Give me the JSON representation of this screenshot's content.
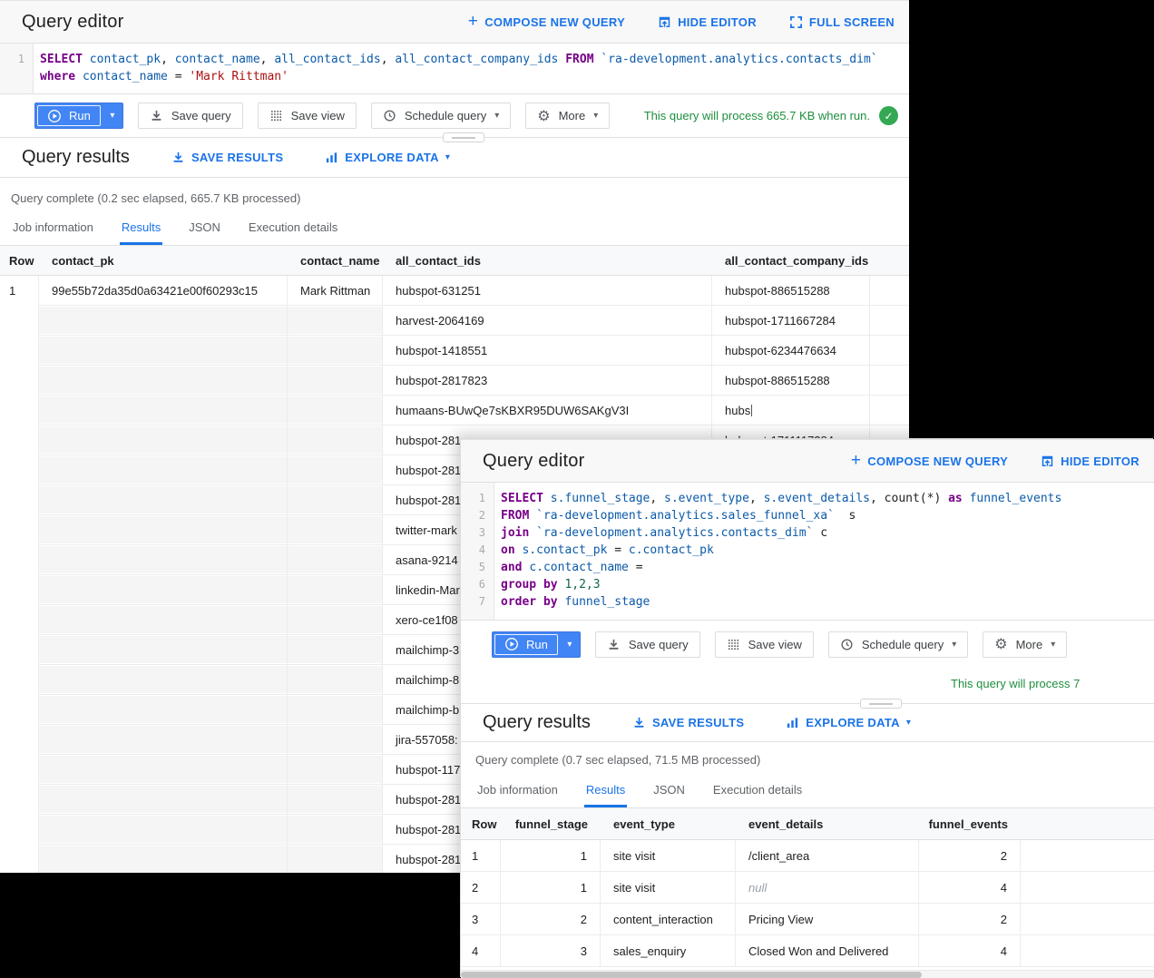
{
  "colors": {
    "link_blue": "#1a73e8",
    "run_button_blue": "#4285f4",
    "status_green": "#1e8e3e",
    "badge_green": "#34a853",
    "sql_keyword": "#770088",
    "sql_identifier": "#0b5aa9",
    "sql_string": "#aa1111",
    "sql_number": "#116644"
  },
  "w1": {
    "title": "Query editor",
    "compose": "COMPOSE NEW QUERY",
    "hide": "HIDE EDITOR",
    "fullscreen": "FULL SCREEN",
    "sql": [
      {
        "n": "1",
        "t": [
          [
            "k",
            "SELECT"
          ],
          [
            "p",
            " "
          ],
          [
            "v",
            "contact_pk"
          ],
          [
            "p",
            ", "
          ],
          [
            "v",
            "contact_name"
          ],
          [
            "p",
            ", "
          ],
          [
            "v",
            "all_contact_ids"
          ],
          [
            "p",
            ", "
          ],
          [
            "v",
            "all_contact_company_ids"
          ],
          [
            "p",
            " "
          ],
          [
            "k",
            "FROM"
          ],
          [
            "p",
            " "
          ],
          [
            "v",
            "`ra-development.analytics.contacts_dim`"
          ]
        ]
      },
      {
        "n": "",
        "t": [
          [
            "k",
            "where"
          ],
          [
            "p",
            " "
          ],
          [
            "v",
            "contact_name"
          ],
          [
            "p",
            " = "
          ],
          [
            "s",
            "'Mark Rittman'"
          ]
        ]
      }
    ],
    "run": "Run",
    "save_query": "Save query",
    "save_view": "Save view",
    "schedule_query": "Schedule query",
    "more": "More",
    "status": "This query will process 665.7 KB when run.",
    "results_title": "Query results",
    "save_results": "SAVE RESULTS",
    "explore_data": "EXPLORE DATA",
    "complete": "Query complete (0.2 sec elapsed, 665.7 KB processed)",
    "tabs": [
      "Job information",
      "Results",
      "JSON",
      "Execution details"
    ],
    "active_tab": "Results",
    "columns": [
      "Row",
      "contact_pk",
      "contact_name",
      "all_contact_ids",
      "all_contact_company_ids"
    ],
    "first_row": {
      "num": "1",
      "pk": "99e55b72da35d0a63421e00f60293c15",
      "name": "Mark Rittman"
    },
    "ids": [
      {
        "id": "hubspot-631251",
        "co": "hubspot-886515288"
      },
      {
        "id": "harvest-2064169",
        "co": "hubspot-1711667284"
      },
      {
        "id": "hubspot-1418551",
        "co": "hubspot-6234476634"
      },
      {
        "id": "hubspot-2817823",
        "co": "hubspot-886515288"
      },
      {
        "id": "humaans-BUwQe7sKBXR95DUW6SAKgV3I",
        "co": "hubs",
        "cursor": true
      },
      {
        "id": "hubspot-281",
        "co": "hubspot-1711117284"
      },
      {
        "id": "hubspot-281",
        "co": ""
      },
      {
        "id": "hubspot-281",
        "co": ""
      },
      {
        "id": "twitter-mark",
        "co": ""
      },
      {
        "id": "asana-9214",
        "co": ""
      },
      {
        "id": "linkedin-Mar",
        "co": ""
      },
      {
        "id": "xero-ce1f08",
        "co": ""
      },
      {
        "id": "mailchimp-3",
        "co": ""
      },
      {
        "id": "mailchimp-8",
        "co": ""
      },
      {
        "id": "mailchimp-b",
        "co": ""
      },
      {
        "id": "jira-557058:",
        "co": ""
      },
      {
        "id": "hubspot-117",
        "co": ""
      },
      {
        "id": "hubspot-281",
        "co": ""
      },
      {
        "id": "hubspot-281",
        "co": ""
      },
      {
        "id": "hubspot-281",
        "co": ""
      }
    ]
  },
  "w2": {
    "title": "Query editor",
    "compose": "COMPOSE NEW QUERY",
    "hide": "HIDE EDITOR",
    "sql": [
      {
        "n": "1",
        "t": [
          [
            "k",
            "SELECT"
          ],
          [
            "p",
            " "
          ],
          [
            "v",
            "s.funnel_stage"
          ],
          [
            "p",
            ", "
          ],
          [
            "v",
            "s.event_type"
          ],
          [
            "p",
            ", "
          ],
          [
            "v",
            "s.event_details"
          ],
          [
            "p",
            ", count(*) "
          ],
          [
            "k",
            "as"
          ],
          [
            "p",
            " "
          ],
          [
            "v",
            "funnel_events"
          ]
        ]
      },
      {
        "n": "2",
        "t": [
          [
            "k",
            "FROM"
          ],
          [
            "p",
            " "
          ],
          [
            "v",
            "`ra-development.analytics.sales_funnel_xa`"
          ],
          [
            "p",
            "  s"
          ]
        ]
      },
      {
        "n": "3",
        "t": [
          [
            "k",
            "join"
          ],
          [
            "p",
            " "
          ],
          [
            "v",
            "`ra-development.analytics.contacts_dim`"
          ],
          [
            "p",
            " c"
          ]
        ]
      },
      {
        "n": "4",
        "t": [
          [
            "k",
            "on"
          ],
          [
            "p",
            " "
          ],
          [
            "v",
            "s.contact_pk"
          ],
          [
            "p",
            " = "
          ],
          [
            "v",
            "c.contact_pk"
          ]
        ]
      },
      {
        "n": "5",
        "t": [
          [
            "k",
            "and"
          ],
          [
            "p",
            " "
          ],
          [
            "v",
            "c.contact_name"
          ],
          [
            "p",
            " ="
          ]
        ]
      },
      {
        "n": "6",
        "t": [
          [
            "k",
            "group"
          ],
          [
            "p",
            " "
          ],
          [
            "k",
            "by"
          ],
          [
            "p",
            " "
          ],
          [
            "n",
            "1,2,3"
          ]
        ]
      },
      {
        "n": "7",
        "t": [
          [
            "k",
            "order"
          ],
          [
            "p",
            " "
          ],
          [
            "k",
            "by"
          ],
          [
            "p",
            " "
          ],
          [
            "v",
            "funnel_stage"
          ]
        ]
      }
    ],
    "run": "Run",
    "save_query": "Save query",
    "save_view": "Save view",
    "schedule_query": "Schedule query",
    "more": "More",
    "status": "This query will process 7",
    "results_title": "Query results",
    "save_results": "SAVE RESULTS",
    "explore_data": "EXPLORE DATA",
    "complete": "Query complete (0.7 sec elapsed, 71.5 MB processed)",
    "tabs": [
      "Job information",
      "Results",
      "JSON",
      "Execution details"
    ],
    "active_tab": "Results",
    "columns": [
      "Row",
      "funnel_stage",
      "event_type",
      "event_details",
      "funnel_events"
    ],
    "rows": [
      [
        "1",
        "1",
        "site visit",
        "/client_area",
        "2"
      ],
      [
        "2",
        "1",
        "site visit",
        "null",
        "4"
      ],
      [
        "3",
        "2",
        "content_interaction",
        "Pricing View",
        "2"
      ],
      [
        "4",
        "3",
        "sales_enquiry",
        "Closed Won and Delivered",
        "4"
      ]
    ]
  }
}
